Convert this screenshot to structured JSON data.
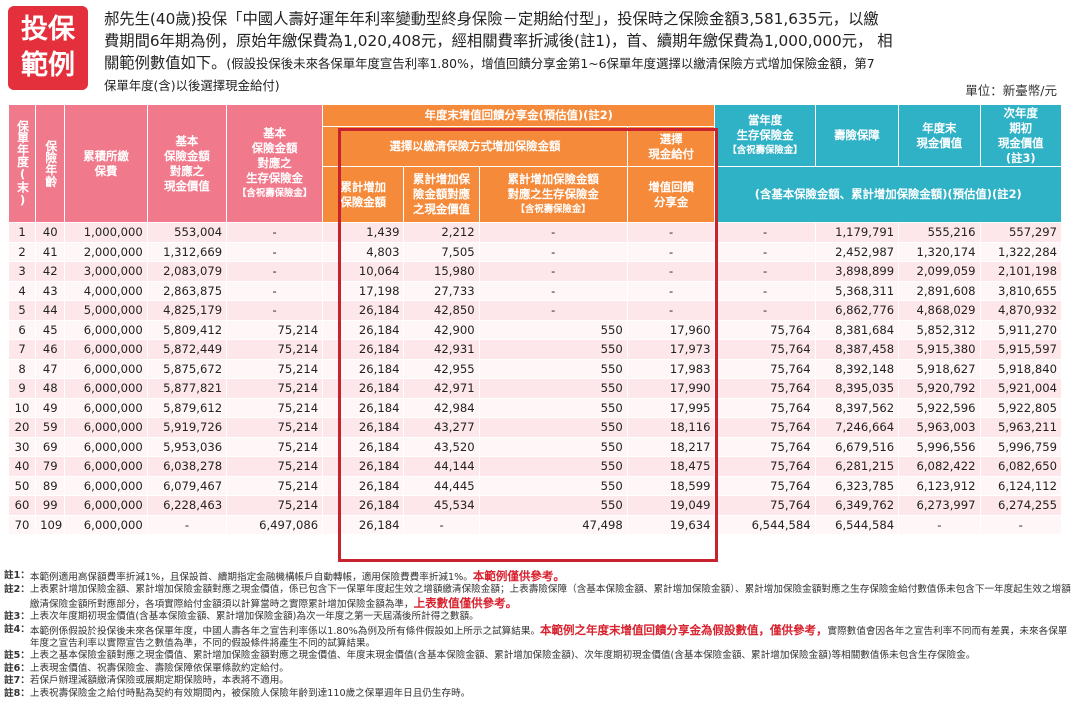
{
  "badge": {
    "line1": "投保",
    "line2": "範例"
  },
  "intro": {
    "line1": "郝先生(40歲)投保「中國人壽好運年年利率變動型終身保險－定期給付型」，投保時之保險金額3,581,635元，以繳",
    "line2": "費期間6年期為例，原始年繳保費為1,020,408元，經相關費率折減後(註1)，首、續期年繳保費為1,000,000元， 相",
    "line3a": "關範例數值如下。",
    "line3b": "(假設投保後未來各保單年度宣告利率1.80%，增值回饋分享金第1~6保單年度選擇以繳清保險方式增加保險金額，第7",
    "line4": "保單年度(含)以後選擇現金給付)"
  },
  "unit": "單位：新臺幣/元",
  "headers": {
    "policy_year": "保單年度(末)",
    "age": "保險年齡",
    "cum_premium": "累積所繳保費",
    "basic_cash": [
      "基本",
      "保險金額",
      "對應之",
      "現金價值"
    ],
    "basic_survival": [
      "基本",
      "保險金額",
      "對應之",
      "生存保險金",
      "【含祝壽保險金】"
    ],
    "group": "年度末增值回饋分享金(預估值)(註2)",
    "sub_paidup": "選擇以繳清保險方式增加保險金額",
    "sub_cash": [
      "選擇",
      "現金給付"
    ],
    "cum_increase": [
      "累計增加",
      "保險金額"
    ],
    "cum_increase_cash": [
      "累計增加保",
      "險金額對應",
      "之現金價值"
    ],
    "cum_increase_survival": [
      "累計增加保險金額",
      "對應之生存保險金",
      "【含祝壽保險金】"
    ],
    "bonus": [
      "增值回饋",
      "分享金"
    ],
    "current_survival": [
      "當年度",
      "生存保險金",
      "【含祝壽保險金】"
    ],
    "death": "壽險保障",
    "year_end_cash": [
      "年度末",
      "現金價值"
    ],
    "next_year_cash": [
      "次年度",
      "期初",
      "現金價值",
      "(註3)"
    ],
    "including": "(含基本保險金額、累計增加保險金額)(預估值)(註2)"
  },
  "rows": [
    [
      "1",
      "40",
      "1,000,000",
      "553,004",
      "-",
      "1,439",
      "2,212",
      "-",
      "-",
      "-",
      "1,179,791",
      "555,216",
      "557,297"
    ],
    [
      "2",
      "41",
      "2,000,000",
      "1,312,669",
      "-",
      "4,803",
      "7,505",
      "-",
      "-",
      "-",
      "2,452,987",
      "1,320,174",
      "1,322,284"
    ],
    [
      "3",
      "42",
      "3,000,000",
      "2,083,079",
      "-",
      "10,064",
      "15,980",
      "-",
      "-",
      "-",
      "3,898,899",
      "2,099,059",
      "2,101,198"
    ],
    [
      "4",
      "43",
      "4,000,000",
      "2,863,875",
      "-",
      "17,198",
      "27,733",
      "-",
      "-",
      "-",
      "5,368,311",
      "2,891,608",
      "3,810,655"
    ],
    [
      "5",
      "44",
      "5,000,000",
      "4,825,179",
      "-",
      "26,184",
      "42,850",
      "-",
      "-",
      "-",
      "6,862,776",
      "4,868,029",
      "4,870,932"
    ],
    [
      "6",
      "45",
      "6,000,000",
      "5,809,412",
      "75,214",
      "26,184",
      "42,900",
      "550",
      "17,960",
      "75,764",
      "8,381,684",
      "5,852,312",
      "5,911,270"
    ],
    [
      "7",
      "46",
      "6,000,000",
      "5,872,449",
      "75,214",
      "26,184",
      "42,931",
      "550",
      "17,973",
      "75,764",
      "8,387,458",
      "5,915,380",
      "5,915,597"
    ],
    [
      "8",
      "47",
      "6,000,000",
      "5,875,672",
      "75,214",
      "26,184",
      "42,955",
      "550",
      "17,983",
      "75,764",
      "8,392,148",
      "5,918,627",
      "5,918,840"
    ],
    [
      "9",
      "48",
      "6,000,000",
      "5,877,821",
      "75,214",
      "26,184",
      "42,971",
      "550",
      "17,990",
      "75,764",
      "8,395,035",
      "5,920,792",
      "5,921,004"
    ],
    [
      "10",
      "49",
      "6,000,000",
      "5,879,612",
      "75,214",
      "26,184",
      "42,984",
      "550",
      "17,995",
      "75,764",
      "8,397,562",
      "5,922,596",
      "5,922,805"
    ],
    [
      "20",
      "59",
      "6,000,000",
      "5,919,726",
      "75,214",
      "26,184",
      "43,277",
      "550",
      "18,116",
      "75,764",
      "7,246,664",
      "5,963,003",
      "5,963,211"
    ],
    [
      "30",
      "69",
      "6,000,000",
      "5,953,036",
      "75,214",
      "26,184",
      "43,520",
      "550",
      "18,217",
      "75,764",
      "6,679,516",
      "5,996,556",
      "5,996,759"
    ],
    [
      "40",
      "79",
      "6,000,000",
      "6,038,278",
      "75,214",
      "26,184",
      "44,144",
      "550",
      "18,475",
      "75,764",
      "6,281,215",
      "6,082,422",
      "6,082,650"
    ],
    [
      "50",
      "89",
      "6,000,000",
      "6,079,467",
      "75,214",
      "26,184",
      "44,445",
      "550",
      "18,599",
      "75,764",
      "6,323,785",
      "6,123,912",
      "6,124,112"
    ],
    [
      "60",
      "99",
      "6,000,000",
      "6,228,463",
      "75,214",
      "26,184",
      "45,534",
      "550",
      "19,049",
      "75,764",
      "6,349,762",
      "6,273,997",
      "6,274,255"
    ],
    [
      "70",
      "109",
      "6,000,000",
      "-",
      "6,497,086",
      "26,184",
      "-",
      "47,498",
      "19,634",
      "6,544,584",
      "6,544,584",
      "-",
      "-"
    ]
  ],
  "notes": [
    {
      "label": "註1：",
      "text": "本範例適用高保額費率折減1%，且保設首、續期指定金融機構帳戶自動轉帳，適用保險費費率折減1%。",
      "red": "本範例僅供參考。",
      "tail": ""
    },
    {
      "label": "註2：",
      "text": "上表累計增加保險金額、累計增加保險金額對應之現金價值，係已包含下一保單年度起生效之增額繳清保險金額；上表壽險保障（含基本保險金額、累計增加保險金額）、累計增加保險金額對應之生存保險金給付數值係未包含下一年度起生效之增額繳清保險金額所對應部分，各項實際給付金額須以計算當時之實際累計增加保險金額為準，",
      "red": "上表數值僅供參考。",
      "tail": ""
    },
    {
      "label": "註3：",
      "text": "上表次年度期初現金價值(含基本保險金額、累計增加保險金額)為次一年度之第一天屆滿後所計得之數額。",
      "red": "",
      "tail": ""
    },
    {
      "label": "註4：",
      "text": "本範例係假設於投保後未來各保單年度，中國人壽各年之宣告利率係以1.80%為例及所有條件假設如上所示之試算結果。",
      "red": "本範例之年度末增值回饋分享金為假設數值，僅供參考，",
      "tail": "實際數值會因各年之宣告利率不同而有差異，未來各保單年度之宣告利率以實際宣告之數值為準，不同的假設條件將產生不同的試算結果。"
    },
    {
      "label": "註5：",
      "text": "上表之基本保險金額對應之現金價值、累計增加保險金額對應之現金價值、年度末現金價值(含基本保險金額、累計增加保險金額)、次年度期初現金價值(含基本保險金額、累計增加保險金額)等相關數值係未包含生存保險金。",
      "red": "",
      "tail": ""
    },
    {
      "label": "註6：",
      "text": "上表現金價值、祝壽保險金、壽險保障依保單條款約定給付。",
      "red": "",
      "tail": ""
    },
    {
      "label": "註7：",
      "text": "若保戶辦理減額繳清保險或展期定期保險時，本表將不適用。",
      "red": "",
      "tail": ""
    },
    {
      "label": "註8：",
      "text": "上表祝壽保險金之給付時點為契約有效期間內，被保險人保險年齡到達110歲之保單週年日且仍生存時。",
      "red": "",
      "tail": ""
    }
  ]
}
